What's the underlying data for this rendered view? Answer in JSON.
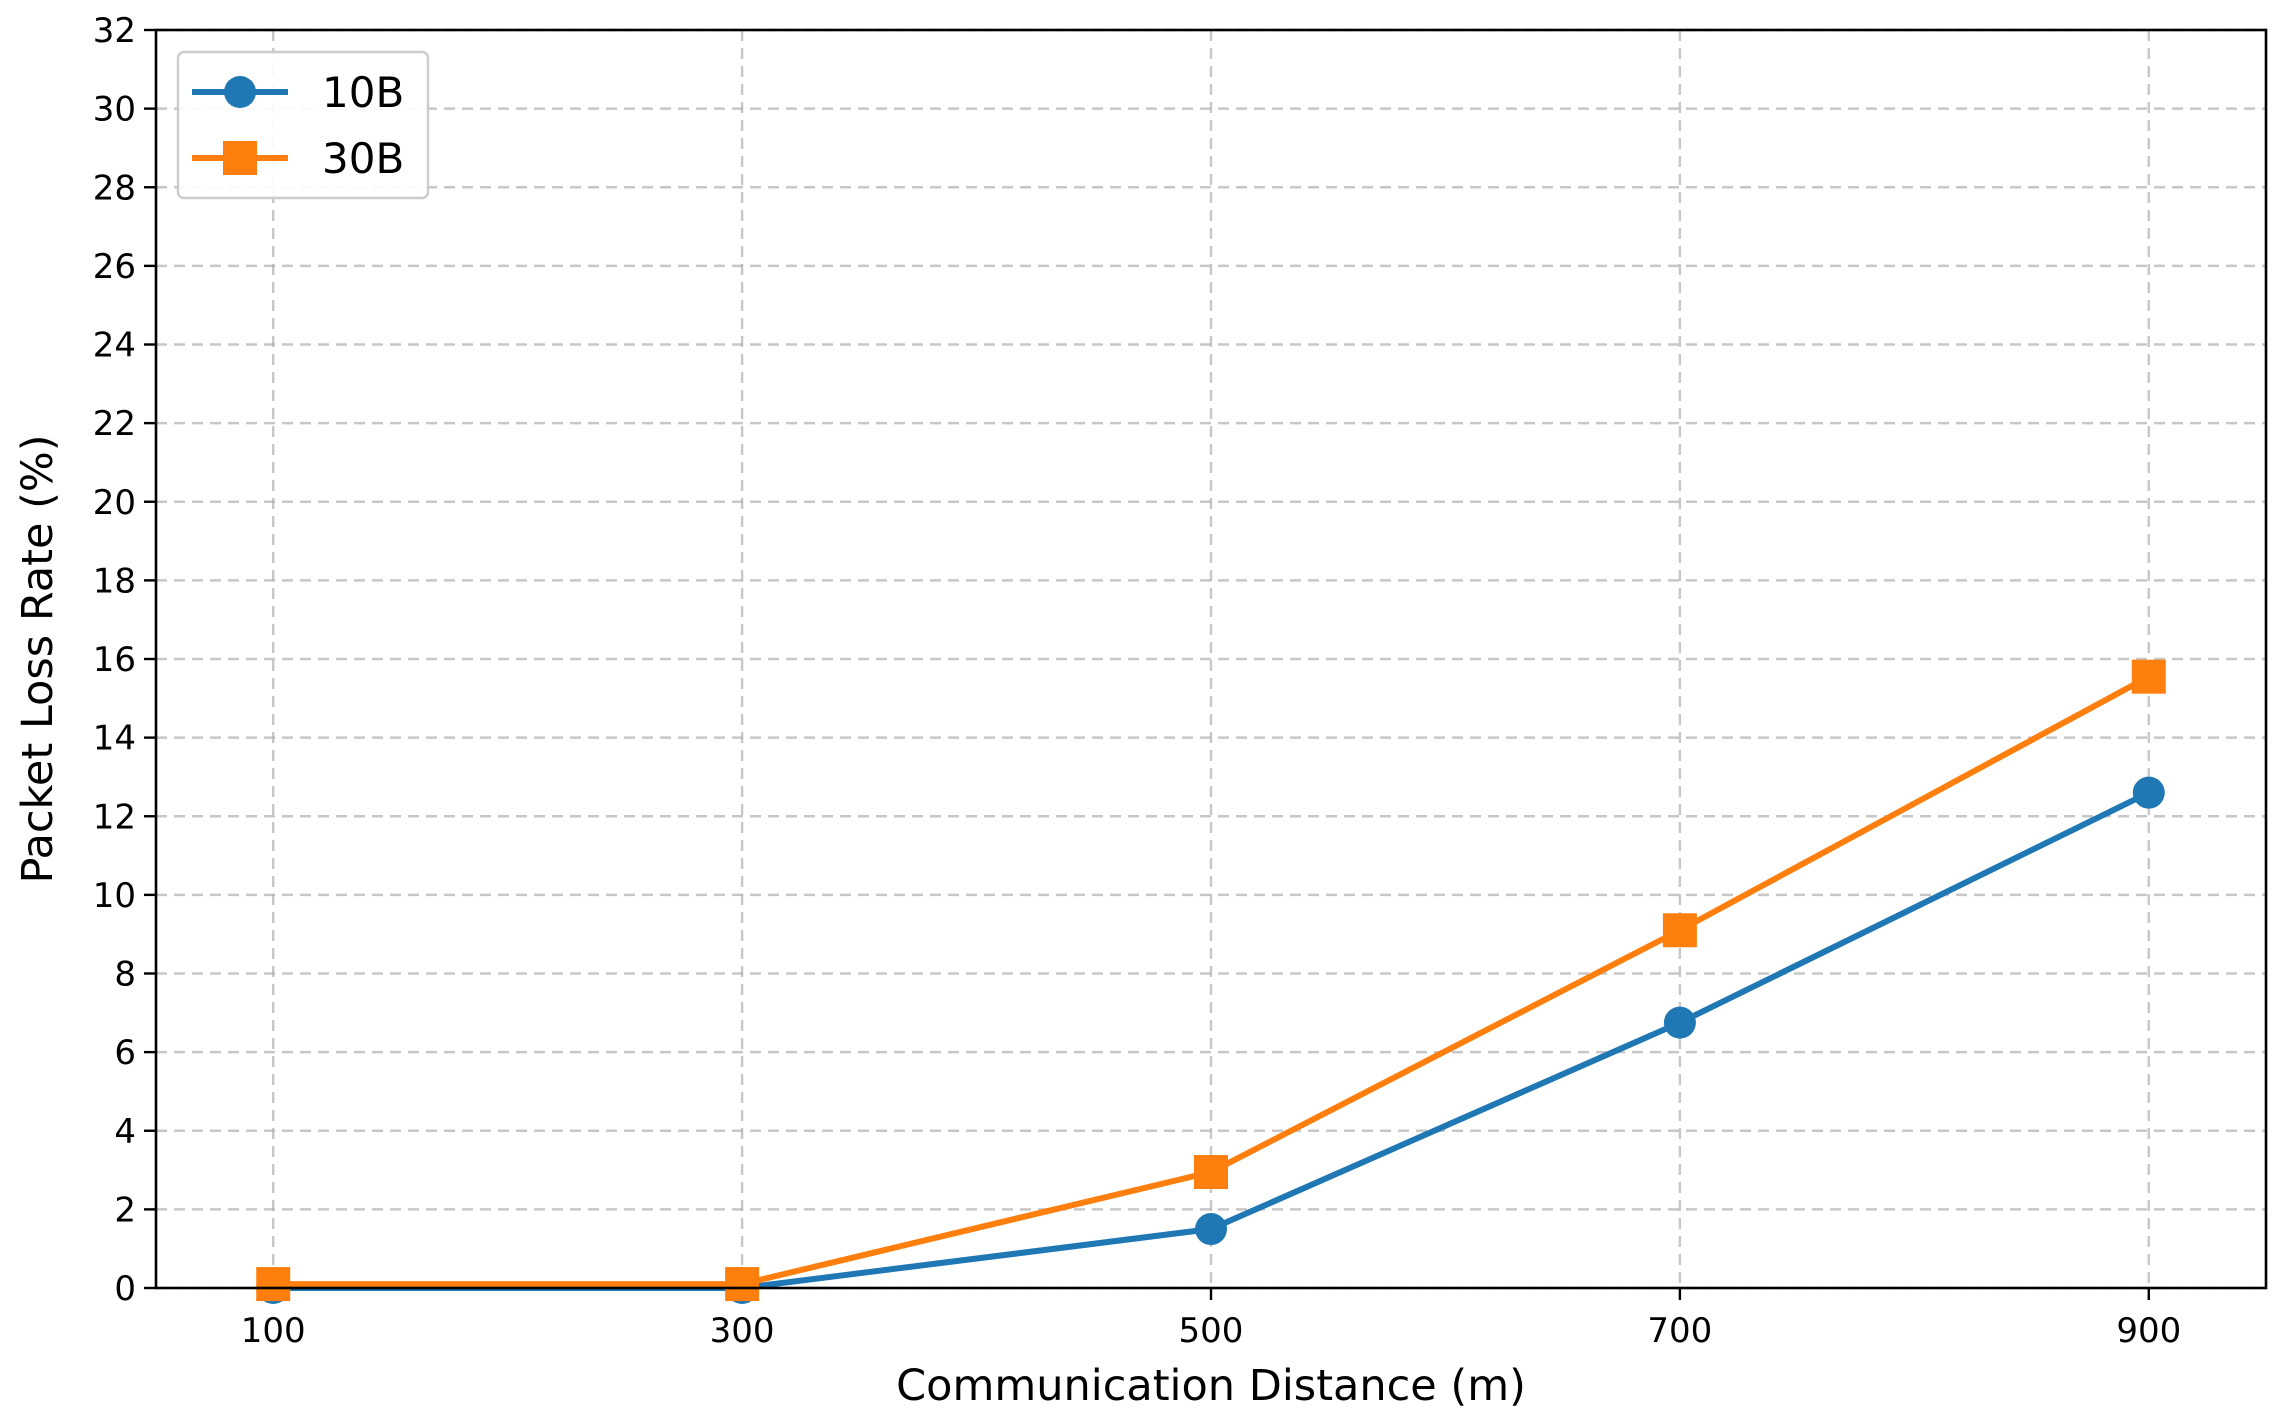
{
  "chart_data": {
    "type": "line",
    "title": "",
    "xlabel": "Communication Distance (m)",
    "ylabel": "Packet Loss Rate (%)",
    "x": [
      100,
      300,
      500,
      700,
      900
    ],
    "xlim": [
      50,
      950
    ],
    "ylim": [
      0,
      32
    ],
    "x_ticks": [
      "100",
      "300",
      "500",
      "700",
      "900"
    ],
    "y_ticks": [
      "0",
      "2",
      "4",
      "6",
      "8",
      "10",
      "12",
      "14",
      "16",
      "18",
      "20",
      "22",
      "24",
      "26",
      "28",
      "30",
      "32"
    ],
    "grid": true,
    "legend_position": "top-left",
    "series": [
      {
        "name": "10B",
        "values": [
          0.0,
          0.0,
          1.5,
          6.75,
          12.6
        ],
        "color": "#1f77b4",
        "marker": "circle"
      },
      {
        "name": "30B",
        "values": [
          0.1,
          0.1,
          2.95,
          9.1,
          15.55
        ],
        "color": "#ff7f0e",
        "marker": "square"
      }
    ]
  }
}
